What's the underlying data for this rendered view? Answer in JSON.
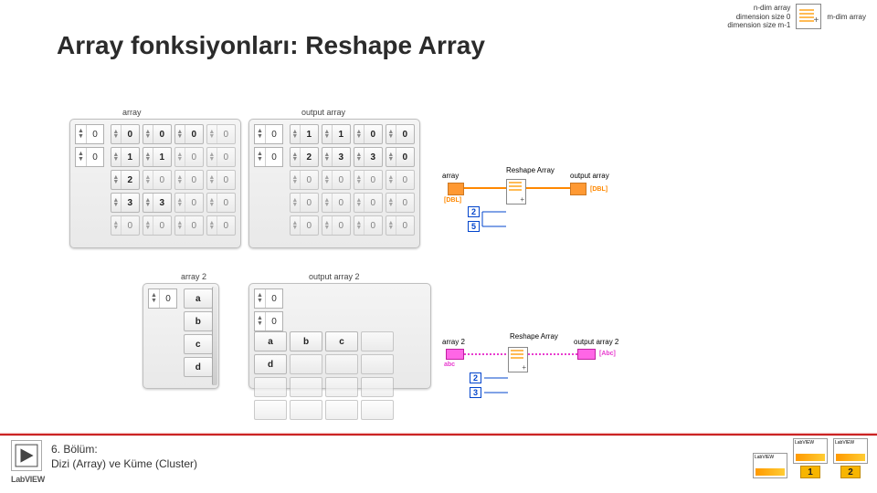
{
  "title": "Array fonksiyonları: Reshape Array",
  "top_help": {
    "left_lines": [
      "n-dim array",
      "dimension size 0",
      "dimension size m-1"
    ],
    "right": "m-dim array",
    "plus": "+"
  },
  "arr_in": {
    "label": "array",
    "idx": [
      "0",
      "0"
    ],
    "cols": 4,
    "rows": 5,
    "values": [
      [
        "0",
        "0",
        "0",
        "0"
      ],
      [
        "1",
        "1",
        "0",
        "0"
      ],
      [
        "2",
        "0",
        "0",
        "0"
      ],
      [
        "3",
        "3",
        "0",
        "0"
      ],
      [
        "0",
        "0",
        "0",
        "0"
      ]
    ],
    "active": [
      [
        0,
        0
      ],
      [
        0,
        1
      ],
      [
        0,
        2
      ],
      [
        1,
        0
      ],
      [
        1,
        1
      ],
      [
        2,
        0
      ],
      [
        3,
        0
      ],
      [
        3,
        1
      ]
    ]
  },
  "arr_out": {
    "label": "output array",
    "idx": [
      "0",
      "0"
    ],
    "cols": 4,
    "rows": 5,
    "values": [
      [
        "1",
        "1",
        "0",
        "0"
      ],
      [
        "2",
        "3",
        "3",
        "0"
      ],
      [
        "0",
        "0",
        "0",
        "0"
      ],
      [
        "0",
        "0",
        "0",
        "0"
      ],
      [
        "0",
        "0",
        "0",
        "0"
      ]
    ],
    "active_rows": [
      0,
      1
    ]
  },
  "arr2_in": {
    "label": "array 2",
    "idx": [
      "0"
    ],
    "values": [
      "a",
      "b",
      "c",
      "d"
    ]
  },
  "arr2_out": {
    "label": "output array 2",
    "idx": [
      "0",
      "0"
    ],
    "cols": 4,
    "rows": 4,
    "values": [
      [
        "a",
        "b",
        "c",
        ""
      ],
      [
        "d",
        "",
        "",
        ""
      ],
      [
        "",
        "",
        "",
        ""
      ],
      [
        "",
        "",
        "",
        ""
      ]
    ],
    "active": [
      [
        0,
        0
      ],
      [
        0,
        1
      ],
      [
        0,
        2
      ],
      [
        1,
        0
      ]
    ]
  },
  "bd1": {
    "title": "Reshape Array",
    "in_label": "array",
    "in_type": "[DBL]",
    "out_label": "output array",
    "out_type": "[DBL]",
    "consts": [
      "2",
      "5"
    ]
  },
  "bd2": {
    "title": "Reshape Array",
    "in_label": "array 2",
    "in_type": "abc",
    "out_label": "output array 2",
    "out_type": "[Abc]",
    "consts": [
      "2",
      "3"
    ]
  },
  "footer": {
    "line1": "6. Bölüm:",
    "line2": "Dizi (Array) ve Küme (Cluster)",
    "labview": "LabVIEW",
    "book_nums": [
      "1",
      "2"
    ]
  }
}
